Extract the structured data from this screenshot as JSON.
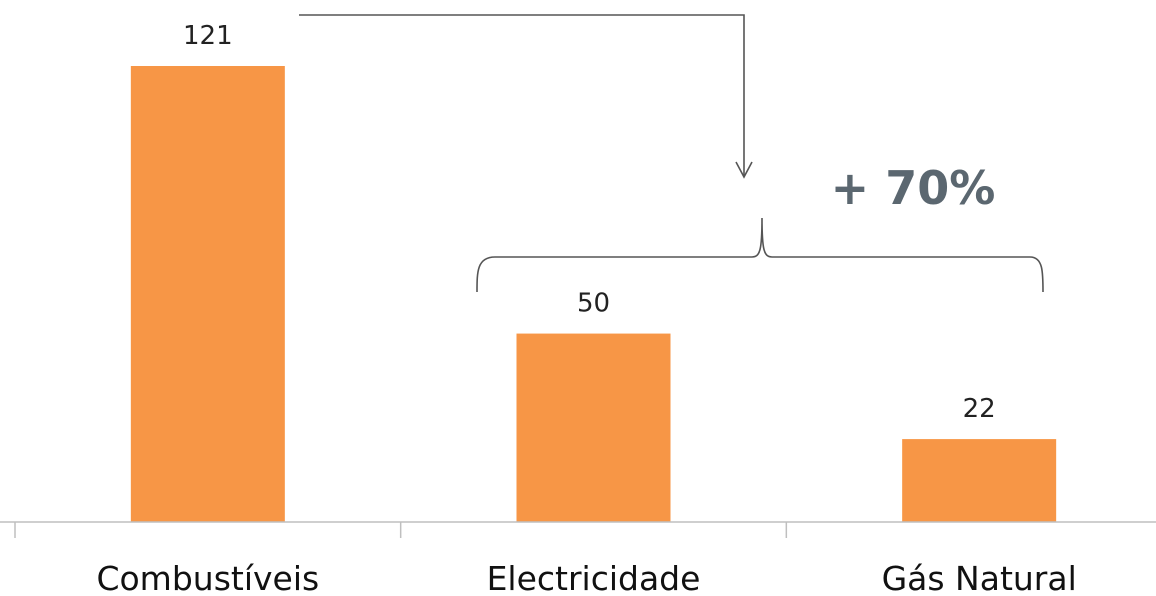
{
  "chart_data": {
    "type": "bar",
    "categories": [
      "Combustíveis",
      "Electricidade",
      "Gás Natural"
    ],
    "values": [
      121,
      50,
      22
    ],
    "data_labels": [
      "121",
      "50",
      "22"
    ],
    "bar_color": "#F79646",
    "ylim": [
      0,
      121
    ],
    "grid": false,
    "legend": "none",
    "annotations": [
      {
        "text": "+ 70%",
        "type": "bracket-with-arrow",
        "from_category": "Combustíveis",
        "spans_categories": [
          "Electricidade",
          "Gás Natural"
        ]
      }
    ]
  }
}
